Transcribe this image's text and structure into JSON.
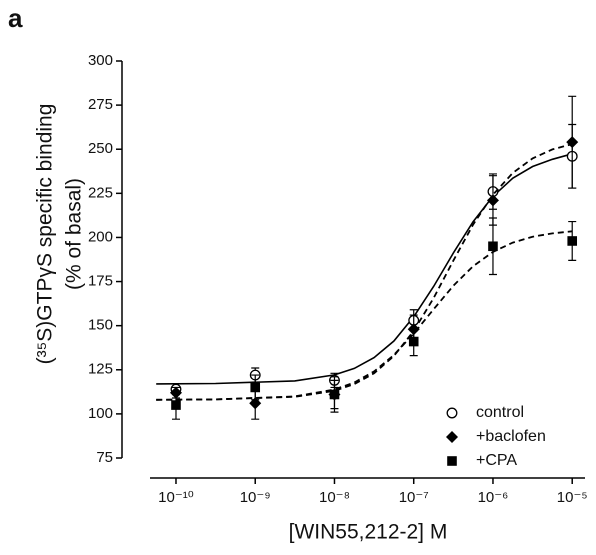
{
  "chart_data": {
    "type": "scatter",
    "panel_label": "a",
    "y_label": [
      "(³⁵S)GTPγS specific binding",
      "(% of basal)"
    ],
    "x_label": "[WIN55,212-2] M",
    "log_x": true,
    "xlim": [
      4.7e-11,
      1.45e-05
    ],
    "xticks": [
      {
        "value": 1e-10,
        "label": "10⁻¹⁰"
      },
      {
        "value": 1e-09,
        "label": "10⁻⁹"
      },
      {
        "value": 1e-08,
        "label": "10⁻⁸"
      },
      {
        "value": 1e-07,
        "label": "10⁻⁷"
      },
      {
        "value": 1e-06,
        "label": "10⁻⁶"
      },
      {
        "value": 1e-05,
        "label": "10⁻⁵"
      }
    ],
    "ylim": [
      75,
      300
    ],
    "yticks": [
      75,
      100,
      125,
      150,
      175,
      200,
      225,
      250,
      275,
      300
    ],
    "legend": "lower right",
    "x": [
      1e-10,
      1e-09,
      1e-08,
      1e-07,
      1e-06,
      1e-05
    ],
    "fit_x": [
      5.62e-11,
      3.16e-10,
      3.16e-09,
      1e-08,
      1.78e-08,
      3.16e-08,
      5.62e-08,
      1e-07,
      1.78e-07,
      3.16e-07,
      5.62e-07,
      1e-06,
      1.78e-06,
      3.16e-06,
      5.62e-06,
      1e-05
    ],
    "series": [
      {
        "name": "control",
        "color": "#000000",
        "marker": "open-circle",
        "dashed": false,
        "values": [
          114,
          122,
          119,
          153,
          226,
          246
        ],
        "errors": [
          3,
          4,
          4,
          6,
          10,
          18
        ],
        "fit": {
          "values": [
            117,
            117.2,
            118.7,
            122.1,
            125.8,
            131.9,
            141.3,
            155,
            172.2,
            191.1,
            208.9,
            223.3,
            233.6,
            240.2,
            244.3,
            247.4
          ]
        }
      },
      {
        "name": "+baclofen",
        "color": "#000000",
        "marker": "diamond",
        "dashed": true,
        "values": [
          112,
          106,
          111,
          148,
          221,
          254
        ],
        "errors": [
          3,
          9,
          8,
          8,
          14,
          26
        ],
        "fit": {
          "values": [
            108,
            108.2,
            109.7,
            113.1,
            116.9,
            123,
            132.8,
            147,
            165.6,
            186.8,
            207.3,
            224.2,
            236.6,
            244.8,
            249.9,
            252.9
          ]
        }
      },
      {
        "name": "+CPA",
        "color": "#000000",
        "marker": "square",
        "dashed": true,
        "values": [
          105,
          115,
          111,
          141,
          195,
          198
        ],
        "errors": [
          8,
          7,
          10,
          8,
          16,
          11
        ],
        "fit": {
          "values": [
            108,
            108.2,
            109.9,
            113.8,
            117.8,
            124.1,
            133.4,
            145.5,
            159.3,
            172.6,
            183.7,
            191.8,
            197.1,
            200.4,
            202.3,
            203.5
          ]
        }
      }
    ]
  }
}
